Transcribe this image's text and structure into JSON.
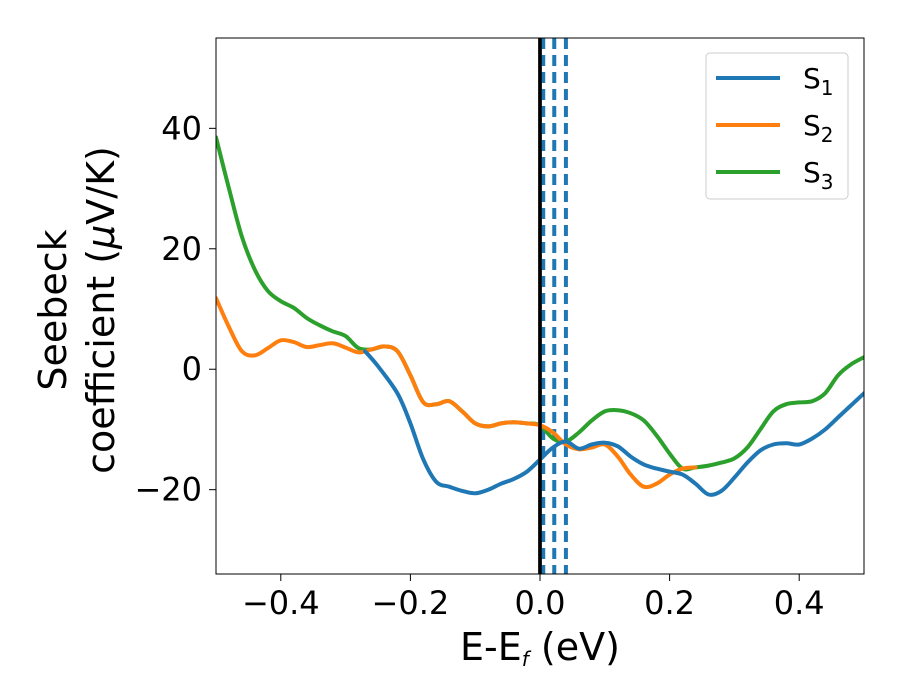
{
  "chart_data": {
    "type": "line",
    "title": "",
    "xlabel": {
      "main": "E-E",
      "sub": "f",
      "unit": " (eV)"
    },
    "ylabel": {
      "line1": "Seebeck",
      "line2": "coefficient  (",
      "mu": "μ",
      "line2_end": "V/K)"
    },
    "xlim": [
      -0.5,
      0.5
    ],
    "ylim": [
      -34,
      55
    ],
    "xticks": [
      -0.4,
      -0.2,
      0.0,
      0.2,
      0.4
    ],
    "xtick_labels": [
      "−0.4",
      "−0.2",
      "0.0",
      "0.2",
      "0.4"
    ],
    "yticks": [
      -20,
      0,
      20,
      40
    ],
    "ytick_labels": [
      "−20",
      "0",
      "20",
      "40"
    ],
    "grid": false,
    "legend_position": "top-right",
    "reference_lines": [
      {
        "x": 0.0,
        "style": "solid",
        "color": "#000000"
      },
      {
        "x": 0.005,
        "style": "dashed",
        "color": "#1f77b4"
      },
      {
        "x": 0.022,
        "style": "dashed",
        "color": "#1f77b4"
      },
      {
        "x": 0.04,
        "style": "dashed",
        "color": "#1f77b4"
      }
    ],
    "series": [
      {
        "name": "S",
        "sub": "1",
        "color": "#1f77b4",
        "x": [
          -0.27,
          -0.25,
          -0.22,
          -0.2,
          -0.18,
          -0.16,
          -0.14,
          -0.12,
          -0.1,
          -0.08,
          -0.06,
          -0.04,
          -0.02,
          0.0,
          0.02,
          0.04,
          0.06,
          0.08,
          0.1,
          0.12,
          0.14,
          0.16,
          0.18,
          0.2,
          0.22,
          0.24,
          0.26,
          0.28,
          0.3,
          0.32,
          0.34,
          0.36,
          0.38,
          0.4,
          0.42,
          0.44,
          0.46,
          0.48,
          0.5
        ],
        "y": [
          3.0,
          0.5,
          -4.0,
          -9.0,
          -15.0,
          -18.7,
          -19.5,
          -20.2,
          -20.6,
          -20.0,
          -19.0,
          -18.2,
          -17.0,
          -15.0,
          -13.0,
          -12.0,
          -13.2,
          -12.5,
          -12.2,
          -12.8,
          -14.5,
          -15.8,
          -16.5,
          -17.0,
          -17.5,
          -19.0,
          -20.8,
          -20.2,
          -18.0,
          -15.5,
          -13.5,
          -12.5,
          -12.3,
          -12.5,
          -11.5,
          -10.0,
          -8.0,
          -6.0,
          -4.0
        ]
      },
      {
        "name": "S",
        "sub": "2",
        "color": "#ff7f0e",
        "x": [
          -0.5,
          -0.48,
          -0.46,
          -0.44,
          -0.42,
          -0.4,
          -0.38,
          -0.36,
          -0.34,
          -0.32,
          -0.3,
          -0.28,
          -0.26,
          -0.24,
          -0.22,
          -0.2,
          -0.18,
          -0.16,
          -0.14,
          -0.12,
          -0.1,
          -0.08,
          -0.06,
          -0.04,
          -0.02,
          0.0,
          0.02,
          0.04,
          0.06,
          0.08,
          0.1,
          0.12,
          0.14,
          0.16,
          0.18,
          0.2,
          0.22,
          0.24
        ],
        "y": [
          11.8,
          7.0,
          3.0,
          2.3,
          3.5,
          4.8,
          4.5,
          3.7,
          4.0,
          4.3,
          3.6,
          2.8,
          3.3,
          3.8,
          3.0,
          -1.0,
          -5.5,
          -5.8,
          -5.3,
          -7.0,
          -9.0,
          -9.5,
          -9.0,
          -8.8,
          -9.0,
          -9.3,
          -10.5,
          -12.5,
          -13.3,
          -13.0,
          -12.5,
          -14.5,
          -17.5,
          -19.5,
          -19.0,
          -17.5,
          -16.5,
          -16.3
        ]
      },
      {
        "name": "S",
        "sub": "3",
        "color": "#2ca02c",
        "x": [
          -0.5,
          -0.48,
          -0.46,
          -0.44,
          -0.42,
          -0.4,
          -0.38,
          -0.36,
          -0.34,
          -0.32,
          -0.3,
          -0.28,
          -0.26,
          -0.24,
          -0.22,
          -0.2,
          -0.18,
          -0.16,
          -0.14,
          -0.12,
          -0.1,
          -0.08,
          -0.06,
          -0.04,
          -0.02,
          0.0,
          0.02,
          0.04,
          0.06,
          0.08,
          0.1,
          0.12,
          0.14,
          0.16,
          0.18,
          0.2,
          0.22,
          0.24,
          0.26,
          0.28,
          0.3,
          0.32,
          0.34,
          0.36,
          0.38,
          0.4,
          0.42,
          0.44,
          0.46,
          0.48,
          0.5
        ],
        "y": [
          38.5,
          30.0,
          22.0,
          16.5,
          13.0,
          11.3,
          10.2,
          8.5,
          7.3,
          6.3,
          5.5,
          3.5,
          3.3,
          3.8,
          3.0,
          -1.0,
          -5.5,
          -5.8,
          -5.3,
          -7.0,
          -9.0,
          -9.5,
          -9.0,
          -8.8,
          -9.0,
          -9.3,
          -11.5,
          -12.0,
          -10.5,
          -8.5,
          -7.0,
          -6.8,
          -7.3,
          -8.5,
          -11.0,
          -14.0,
          -16.5,
          -16.3,
          -16.0,
          -15.5,
          -14.8,
          -13.0,
          -10.0,
          -7.0,
          -5.8,
          -5.5,
          -5.3,
          -4.0,
          -1.0,
          0.8,
          2.0
        ]
      }
    ]
  }
}
